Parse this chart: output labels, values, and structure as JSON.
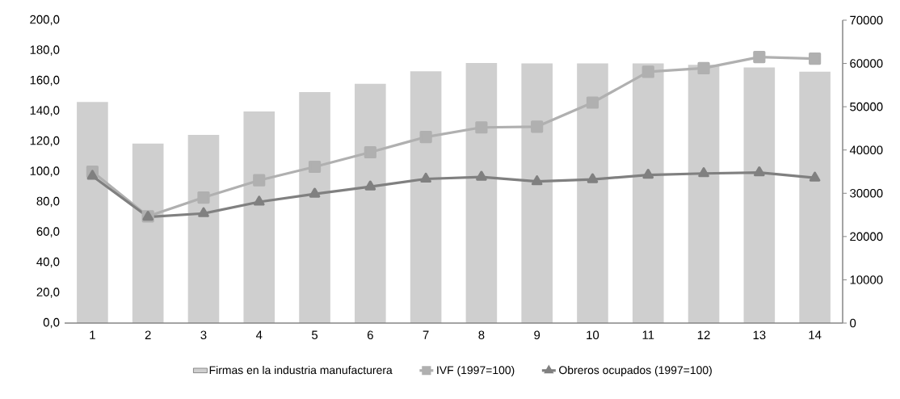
{
  "chart_data": {
    "type": "bar",
    "categories": [
      "1",
      "2",
      "3",
      "4",
      "5",
      "6",
      "7",
      "8",
      "9",
      "10",
      "11",
      "12",
      "13",
      "14"
    ],
    "series": [
      {
        "name": "Firmas en la industria manufacturera",
        "axis": "y2",
        "color": "#cfcfcf",
        "values": [
          51100,
          41500,
          43500,
          48900,
          53400,
          55300,
          58200,
          60100,
          60000,
          60000,
          60000,
          59700,
          59100,
          58100
        ]
      },
      {
        "name": "IVF (1997=100)",
        "type": "line",
        "marker": "square",
        "color": "#b0b0b0",
        "values": [
          100,
          70.5,
          82.9,
          94.3,
          103.2,
          112.8,
          122.9,
          129.2,
          129.7,
          145.6,
          165.9,
          168.3,
          175.7,
          174.6
        ]
      },
      {
        "name": "Obreros ocupados (1997=100)",
        "type": "line",
        "marker": "triangle",
        "color": "#808080",
        "values": [
          97.1,
          70.1,
          72.4,
          80,
          85.3,
          90.1,
          95.2,
          96.5,
          93.5,
          94.9,
          97.8,
          98.8,
          99.4,
          95.9
        ]
      }
    ],
    "ylim": [
      0,
      200
    ],
    "yticks": [
      {
        "value": 0,
        "label": "0,0"
      },
      {
        "value": 20,
        "label": "20,0"
      },
      {
        "value": 40,
        "label": "40,0"
      },
      {
        "value": 60,
        "label": "60,0"
      },
      {
        "value": 80,
        "label": "80,0"
      },
      {
        "value": 100,
        "label": "100,0"
      },
      {
        "value": 120,
        "label": "120,0"
      },
      {
        "value": 140,
        "label": "140,0"
      },
      {
        "value": 160,
        "label": "160,0"
      },
      {
        "value": 180,
        "label": "180,0"
      },
      {
        "value": 200,
        "label": "200,0"
      }
    ],
    "y2lim": [
      0,
      70000
    ],
    "y2ticks": [
      0,
      10000,
      20000,
      30000,
      40000,
      50000,
      60000,
      70000
    ],
    "legend": "bottom"
  }
}
